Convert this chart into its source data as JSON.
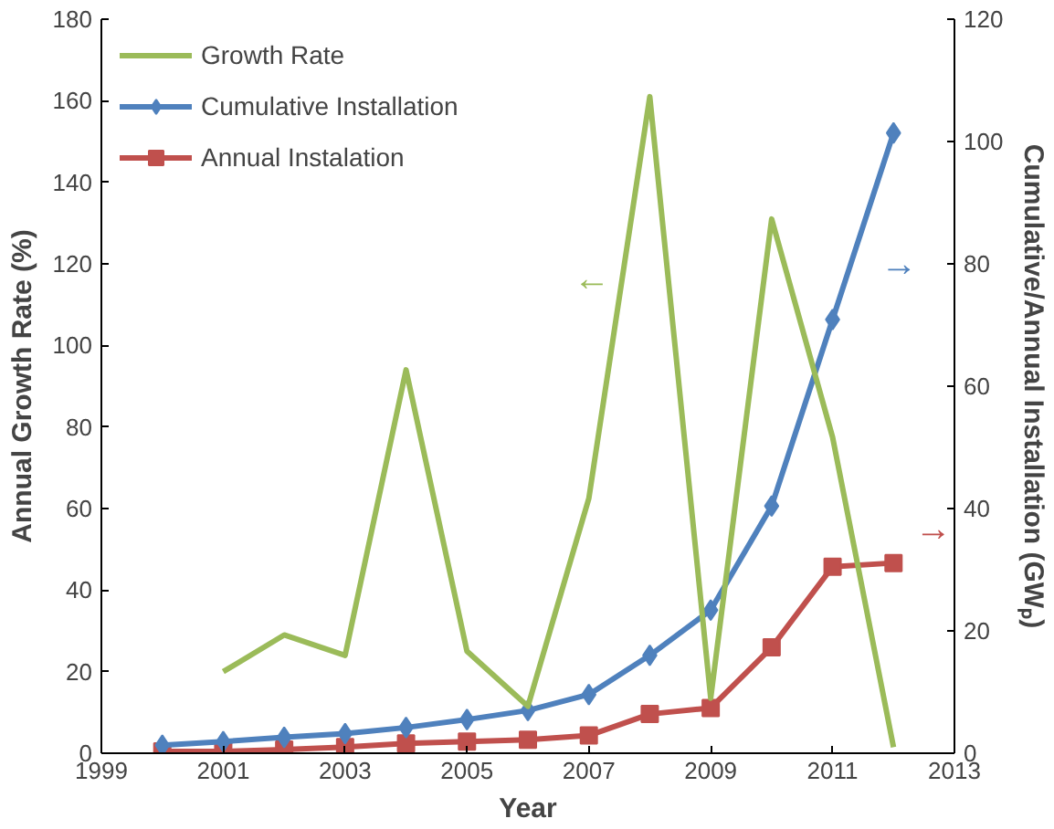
{
  "chart_data": {
    "type": "line",
    "xlabel": "Year",
    "ylabel": "Annual Growth Rate (%)",
    "y2label": "Cumulative/Annual Installation (GWₚ)",
    "xlim": [
      1999,
      2013
    ],
    "xticks": [
      1999,
      2001,
      2003,
      2005,
      2007,
      2009,
      2011,
      2013
    ],
    "ylim": [
      0,
      180
    ],
    "yticks": [
      0,
      20,
      40,
      60,
      80,
      100,
      120,
      140,
      160,
      180
    ],
    "y2lim": [
      0,
      120
    ],
    "y2ticks": [
      0,
      20,
      40,
      60,
      80,
      100,
      120
    ],
    "grid": false,
    "legend": "top left",
    "series": [
      {
        "name": "Growth Rate",
        "color": "#9bbb59",
        "marker": "none",
        "x": [
          2001,
          2002,
          2003,
          2004,
          2005,
          2006,
          2007,
          2008,
          2009,
          2010,
          2011,
          2012
        ],
        "values": [
          20,
          29,
          24,
          94,
          25,
          11.5,
          62.5,
          161,
          13.5,
          131,
          77.5,
          1.5
        ]
      },
      {
        "name": "Cumulative Installation",
        "color": "#4f81bd",
        "marker": "diamond",
        "axis": "y2",
        "x": [
          2000,
          2001,
          2002,
          2003,
          2004,
          2005,
          2006,
          2007,
          2008,
          2009,
          2010,
          2011,
          2012
        ],
        "values": [
          1.3,
          1.9,
          2.6,
          3.2,
          4.2,
          5.5,
          7,
          9.6,
          16,
          23.4,
          40.4,
          70.9,
          101.4
        ]
      },
      {
        "name": "Annual Instalation",
        "color": "#c0504d",
        "marker": "square",
        "axis": "y2",
        "x": [
          2000,
          2001,
          2002,
          2003,
          2004,
          2005,
          2006,
          2007,
          2008,
          2009,
          2010,
          2011,
          2012
        ],
        "values": [
          0.3,
          0.3,
          0.6,
          1,
          1.6,
          1.9,
          2.2,
          2.9,
          6.4,
          7.4,
          17.3,
          30.5,
          31.1
        ]
      }
    ],
    "annotations": [
      "←",
      "→",
      "→"
    ]
  }
}
